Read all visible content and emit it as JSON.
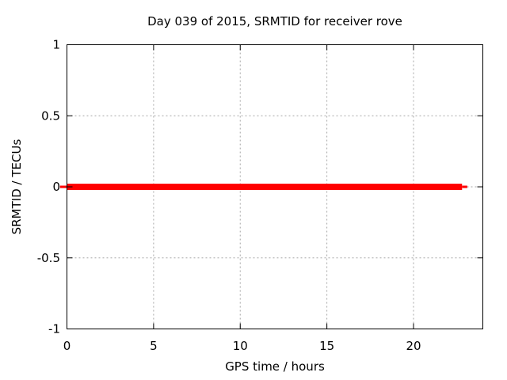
{
  "chart_data": {
    "type": "line",
    "title": "Day 039 of 2015, SRMTID for receiver rove",
    "xlabel": "GPS time / hours",
    "ylabel": "SRMTID / TECUs",
    "xlim": [
      0,
      24
    ],
    "ylim": [
      -1,
      1
    ],
    "xticks": [
      0,
      5,
      10,
      15,
      20
    ],
    "xtick_labels": [
      "0",
      "5",
      "10",
      "15",
      "20"
    ],
    "yticks": [
      -1,
      -0.5,
      0,
      0.5,
      1
    ],
    "ytick_labels": [
      "-1",
      "-0.5",
      "0",
      "0.5",
      "1"
    ],
    "grid": true,
    "grid_style": "dotted",
    "legend": "none",
    "series": [
      {
        "name": "SRMTID",
        "color": "#ff0000",
        "y_value": 0,
        "x_start": 0,
        "x_end": 22.8,
        "description": "constant zero SRMTID value across the observed GPS time span",
        "segments": [
          {
            "x1": -0.4,
            "x2": 0,
            "y": 0,
            "thickness_px": 3
          },
          {
            "x1": 0,
            "x2": 22.8,
            "y": 0,
            "thickness_px": 8
          },
          {
            "x1": 22.8,
            "x2": 23.1,
            "y": 0,
            "thickness_px": 3
          }
        ]
      }
    ],
    "colors": {
      "series": "#ff0000",
      "grid": "#a6a6a6",
      "axis": "#000000",
      "text": "#000000",
      "background": "#ffffff"
    }
  }
}
